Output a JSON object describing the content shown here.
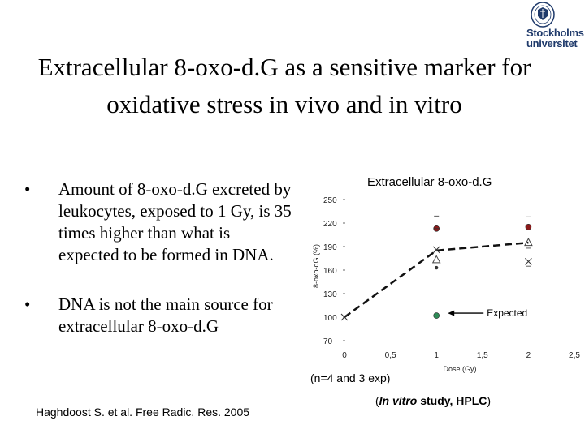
{
  "logo": {
    "name": "Stockholms universitet"
  },
  "slide": {
    "title": "Extracellular 8-oxo-d.G as a sensitive marker for oxidative stress in vivo and in vitro",
    "bullet_glyph": "•",
    "bullets": [
      "Amount of 8-oxo-d.G excreted by leukocytes, exposed to 1 Gy, is 35 times higher than what is expected to be formed in DNA.",
      "DNA is not the main source for extracellular 8-oxo-d.G"
    ],
    "citation": "Haghdoost S. et al. Free Radic. Res. 2005",
    "n_note": "(n=4 and 3 exp)",
    "vitro_open": "(",
    "vitro_italic": "In vitro",
    "vitro_rest": " study, HPLC",
    "vitro_close": ")"
  },
  "chart_data": {
    "type": "scatter",
    "title": "Extracellular 8-oxo-d.G",
    "xlabel": "Dose (Gy)",
    "ylabel": "8-oxo-dG (%)",
    "xlim": [
      0,
      2.5
    ],
    "ylim": [
      70,
      250
    ],
    "x_ticks": [
      "0",
      "0,5",
      "1",
      "1,5",
      "2",
      "2,5"
    ],
    "x_tick_values": [
      0,
      0.5,
      1,
      1.5,
      2,
      2.5
    ],
    "y_ticks": [
      "250",
      "220",
      "190",
      "160",
      "130",
      "100",
      "70"
    ],
    "y_tick_values": [
      250,
      220,
      190,
      160,
      130,
      100,
      70
    ],
    "series": [
      {
        "marker": "circle",
        "color": "#8b1a1a",
        "points": [
          {
            "x": 1,
            "y": 213
          },
          {
            "x": 2,
            "y": 215
          }
        ]
      },
      {
        "marker": "cross",
        "color": "#333333",
        "points": [
          {
            "x": 0,
            "y": 100
          },
          {
            "x": 1,
            "y": 186
          },
          {
            "x": 2,
            "y": 171
          }
        ]
      },
      {
        "marker": "triangle",
        "color": "#444444",
        "points": [
          {
            "x": 1,
            "y": 173
          },
          {
            "x": 2,
            "y": 195
          }
        ]
      },
      {
        "marker": "filled-dot",
        "color": "#333333",
        "points": [
          {
            "x": 1,
            "y": 163
          }
        ]
      },
      {
        "marker": "circle",
        "color": "#2e8b57",
        "points": [
          {
            "x": 1,
            "y": 102
          }
        ]
      }
    ],
    "mean_line": {
      "style": "dashed",
      "color": "#111111",
      "points": [
        {
          "x": 0,
          "y": 100
        },
        {
          "x": 1,
          "y": 185
        },
        {
          "x": 2,
          "y": 195
        }
      ]
    },
    "annotation": {
      "text": "Expected",
      "x": 1,
      "y": 102
    }
  }
}
